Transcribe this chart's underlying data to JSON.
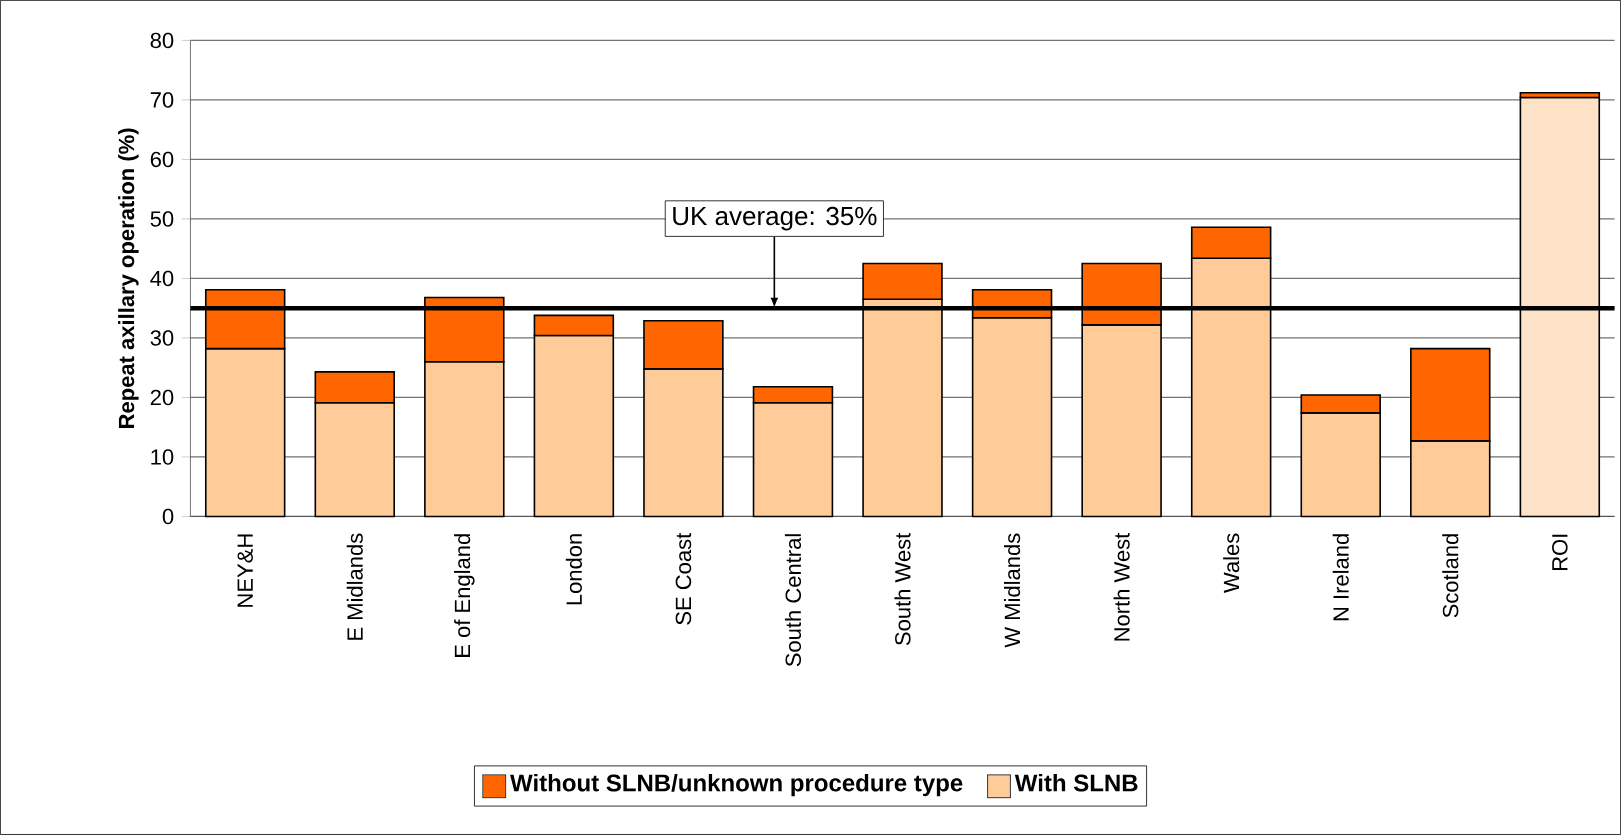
{
  "chart_data": {
    "type": "bar",
    "stacked": true,
    "ylabel": "Repeat axillary operation (%)",
    "categories": [
      "NEY&H",
      "E Midlands",
      "E of England",
      "London",
      "SE Coast",
      "South Central",
      "South West",
      "W Midlands",
      "North West",
      "Wales",
      "N Ireland",
      "Scotland",
      "ROI"
    ],
    "series": [
      {
        "name": "With SLNB",
        "color": "#ffcc99",
        "colors": [
          "#ffcc99",
          "#ffcc99",
          "#ffcc99",
          "#ffcc99",
          "#ffcc99",
          "#ffcc99",
          "#ffcc99",
          "#ffcc99",
          "#ffcc99",
          "#ffcc99",
          "#ffcc99",
          "#ffcc99",
          "#fde2c8"
        ],
        "values": [
          28.2,
          19.1,
          26.0,
          30.4,
          24.8,
          19.1,
          36.5,
          33.4,
          32.2,
          43.4,
          17.4,
          12.7,
          70.4
        ]
      },
      {
        "name": "Without SLNB/unknown procedure type",
        "color": "#ff6600",
        "values": [
          9.9,
          5.2,
          10.8,
          3.4,
          8.1,
          2.7,
          6.0,
          4.7,
          10.3,
          5.2,
          3.0,
          15.5,
          0.8
        ]
      }
    ],
    "ylim": [
      0,
      80
    ],
    "yticks": [
      0,
      10,
      20,
      30,
      40,
      50,
      60,
      70,
      80
    ],
    "grid": "y",
    "legend": "bottom",
    "ref_lines": [
      {
        "axis": "y",
        "value": 35,
        "label": "UK average: 35%",
        "color": "#000000"
      }
    ]
  }
}
